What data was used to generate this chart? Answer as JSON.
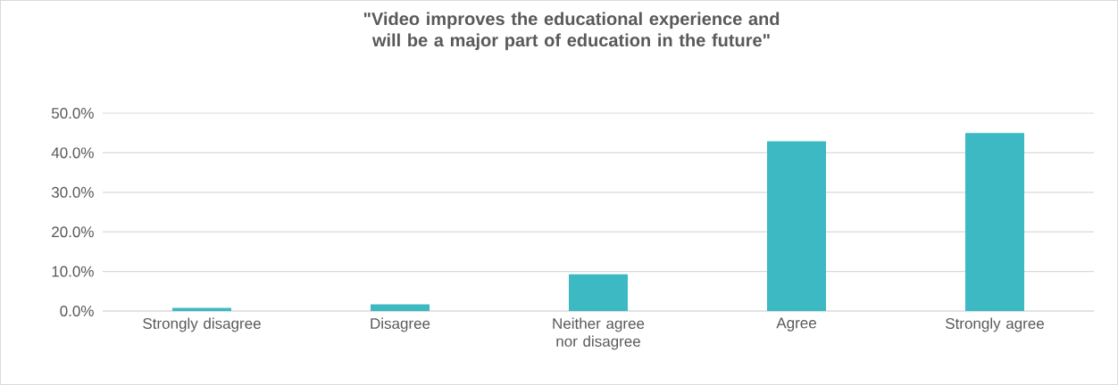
{
  "chart_data": {
    "type": "bar",
    "title": "\"Video improves the educational experience and will be a major part of education in the future\"",
    "categories": [
      "Strongly disagree",
      "Disagree",
      "Neither agree nor disagree",
      "Agree",
      "Strongly agree"
    ],
    "values": [
      0.8,
      1.7,
      9.3,
      42.9,
      45.0
    ],
    "color": "#3cb9c2",
    "ylim": [
      0,
      50
    ],
    "yticks": [
      {
        "value": 0,
        "label": "0.0%"
      },
      {
        "value": 10,
        "label": "10.0%"
      },
      {
        "value": 20,
        "label": "20.0%"
      },
      {
        "value": 30,
        "label": "30.0%"
      },
      {
        "value": 40,
        "label": "40.0%"
      },
      {
        "value": 50,
        "label": "50.0%"
      }
    ],
    "grid": "y"
  }
}
